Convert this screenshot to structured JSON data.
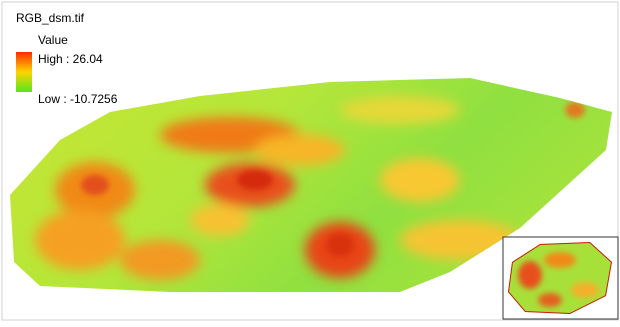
{
  "layer": {
    "name": "RGB_dsm.tif",
    "legend": {
      "title": "Value",
      "high": "High : 26.04",
      "low": "Low : -10.7256"
    }
  }
}
